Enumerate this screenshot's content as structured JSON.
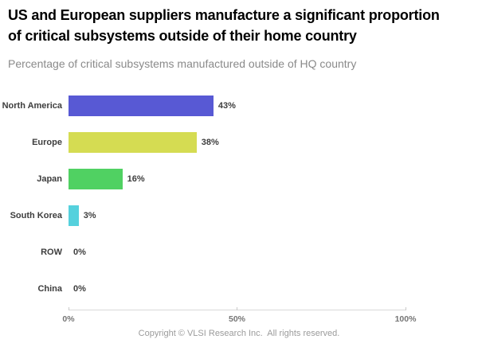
{
  "header": {
    "title_lines": [
      "US and European suppliers manufacture a significant proportion",
      "of critical subsystems outside of their home country"
    ],
    "subtitle": "Percentage of critical subsystems manufactured outside of HQ country"
  },
  "chart_data": {
    "type": "bar",
    "orientation": "horizontal",
    "title": "Percentage of critical subsystems manufactured outside of HQ country",
    "categories": [
      "North America",
      "Europe",
      "Japan",
      "South Korea",
      "ROW",
      "China"
    ],
    "values": [
      43,
      38,
      16,
      3,
      0,
      0
    ],
    "value_labels": [
      "43%",
      "38%",
      "16%",
      "3%",
      "0%",
      "0%"
    ],
    "bar_colors": [
      "#5859d4",
      "#d5dc52",
      "#50d162",
      "#55d1dd",
      "#5859d4",
      "#5859d4"
    ],
    "xlabel": "",
    "ylabel": "",
    "xlim": [
      0,
      100
    ],
    "x_ticks": [
      {
        "label": "0%",
        "value": 0
      },
      {
        "label": "50%",
        "value": 50
      },
      {
        "label": "100%",
        "value": 100
      }
    ],
    "grid": false,
    "legend": false,
    "axis_line_color": "#d9d9d9"
  },
  "footer": {
    "copyright": "Copyright © VLSI Research Inc.  All rights reserved."
  }
}
